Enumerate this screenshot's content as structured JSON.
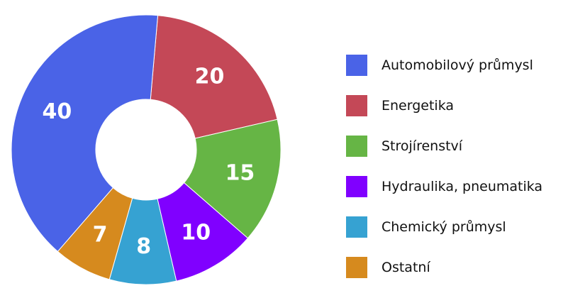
{
  "chart_data": {
    "type": "pie",
    "donut": true,
    "legend_position": "right",
    "slices": [
      {
        "label": "Energetika",
        "value": 20,
        "color": "#c44857"
      },
      {
        "label": "Strojírenství",
        "value": 15,
        "color": "#66b545"
      },
      {
        "label": "Hydraulika, pneumatika",
        "value": 10,
        "color": "#8000ff"
      },
      {
        "label": "Chemický průmysl",
        "value": 8,
        "color": "#36a2d2"
      },
      {
        "label": "Ostatní",
        "value": 7,
        "color": "#d68a1e"
      },
      {
        "label": "Automobilový průmysl",
        "value": 40,
        "color": "#4a63e7"
      }
    ],
    "legend_order": [
      "Automobilový průmysl",
      "Energetika",
      "Strojírenství",
      "Hydraulika, pneumatika",
      "Chemický průmysl",
      "Ostatní"
    ]
  }
}
